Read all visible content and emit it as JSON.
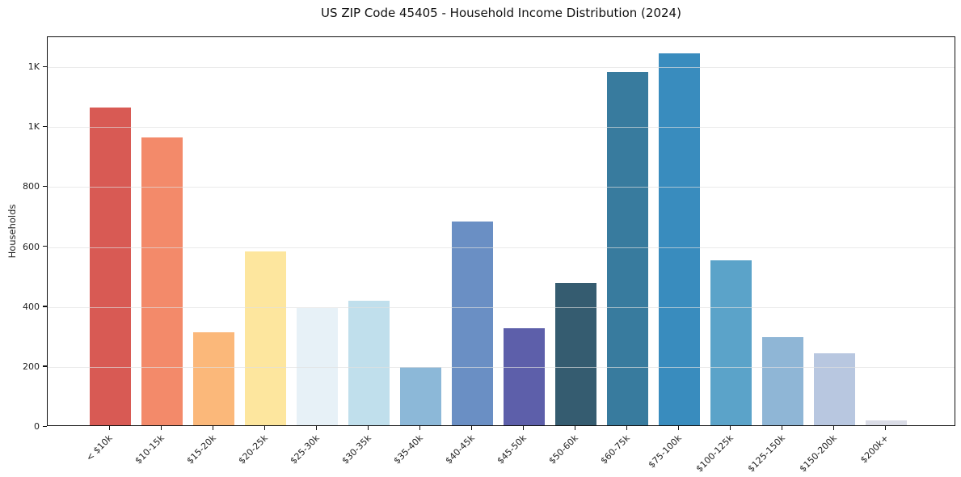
{
  "figure": {
    "background": "#ffffff",
    "frame_color": "#111111",
    "grid_color": "#e3e3e3",
    "text_color": "#1a1a1a"
  },
  "chart_data": {
    "type": "bar",
    "title": "US ZIP Code 45405 - Household Income Distribution (2024)",
    "xlabel": "",
    "ylabel": "Households",
    "categories": [
      "< $10k",
      "$10-15k",
      "$15-20k",
      "$20-25k",
      "$25-30k",
      "$30-35k",
      "$35-40k",
      "$40-45k",
      "$45-50k",
      "$50-60k",
      "$60-75k",
      "$75-100k",
      "$100-125k",
      "$125-150k",
      "$150-200k",
      "$200k+"
    ],
    "values": [
      1060,
      960,
      310,
      580,
      390,
      415,
      195,
      680,
      325,
      475,
      1180,
      1240,
      550,
      295,
      240,
      15
    ],
    "bar_colors": [
      "#d85a54",
      "#f38a6a",
      "#fbb87a",
      "#fde69e",
      "#e7f1f7",
      "#c0dfec",
      "#8cb8d8",
      "#6a8fc4",
      "#5d5faa",
      "#355c70",
      "#387b9e",
      "#398cbe",
      "#5ba3c9",
      "#8fb6d6",
      "#b8c7e0",
      "#dadce6"
    ],
    "ylim": [
      0,
      1300
    ],
    "yticks": [
      {
        "value": 0,
        "label": "0"
      },
      {
        "value": 200,
        "label": "200"
      },
      {
        "value": 400,
        "label": "400"
      },
      {
        "value": 600,
        "label": "600"
      },
      {
        "value": 800,
        "label": "800"
      },
      {
        "value": 1000,
        "label": "1K"
      },
      {
        "value": 1200,
        "label": "1K"
      }
    ],
    "grid": "horizontal",
    "grid_over_bars": true,
    "legend": "none",
    "x_label_rotation_deg": 45
  }
}
